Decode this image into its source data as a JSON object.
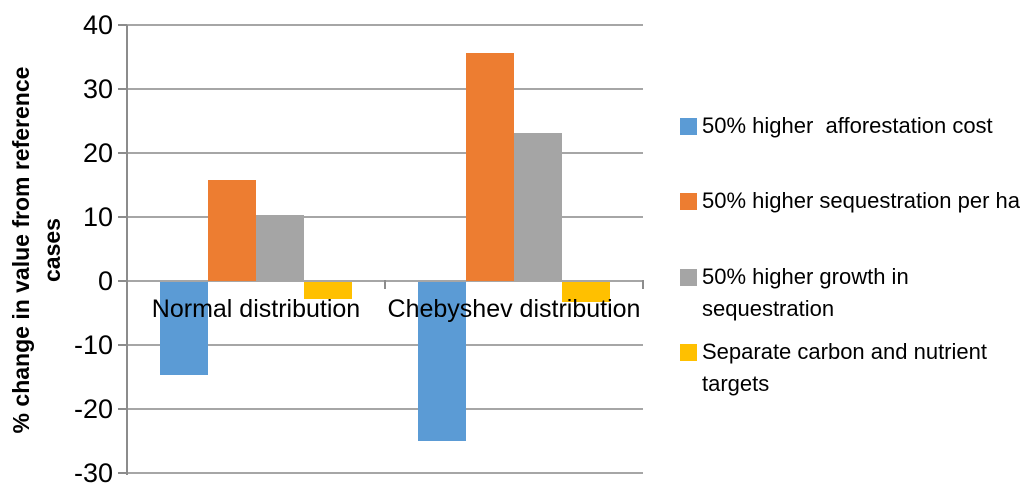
{
  "chart_data": {
    "type": "bar",
    "title": "",
    "categories": [
      "Normal distribution",
      "Chebyshev distribution"
    ],
    "series": [
      {
        "name": "50% higher  afforestation cost",
        "color": "#5B9BD5",
        "values": [
          -14.6,
          -24.9
        ]
      },
      {
        "name": "50% higher sequestration per ha",
        "color": "#ED7D31",
        "values": [
          15.8,
          35.6
        ]
      },
      {
        "name": "50% higher growth in sequestration",
        "color": "#A5A5A5",
        "values": [
          10.3,
          23.2
        ]
      },
      {
        "name": "Separate carbon and nutrient targets",
        "color": "#FFC000",
        "values": [
          -2.6,
          -3.1
        ]
      }
    ],
    "xlabel": "",
    "ylabel": "% change in value from reference cases",
    "ylabel_lines": [
      "% change in value from reference",
      "cases"
    ],
    "yticks": [
      40,
      30,
      20,
      10,
      0,
      -10,
      -20,
      -30
    ],
    "ylim": [
      -30,
      40
    ],
    "grid": true,
    "legend_position": "right",
    "colors": {
      "gridline": "#A6A6A6",
      "axis": "#8C8C8C",
      "background": "#FFFFFF",
      "text": "#000000"
    }
  }
}
